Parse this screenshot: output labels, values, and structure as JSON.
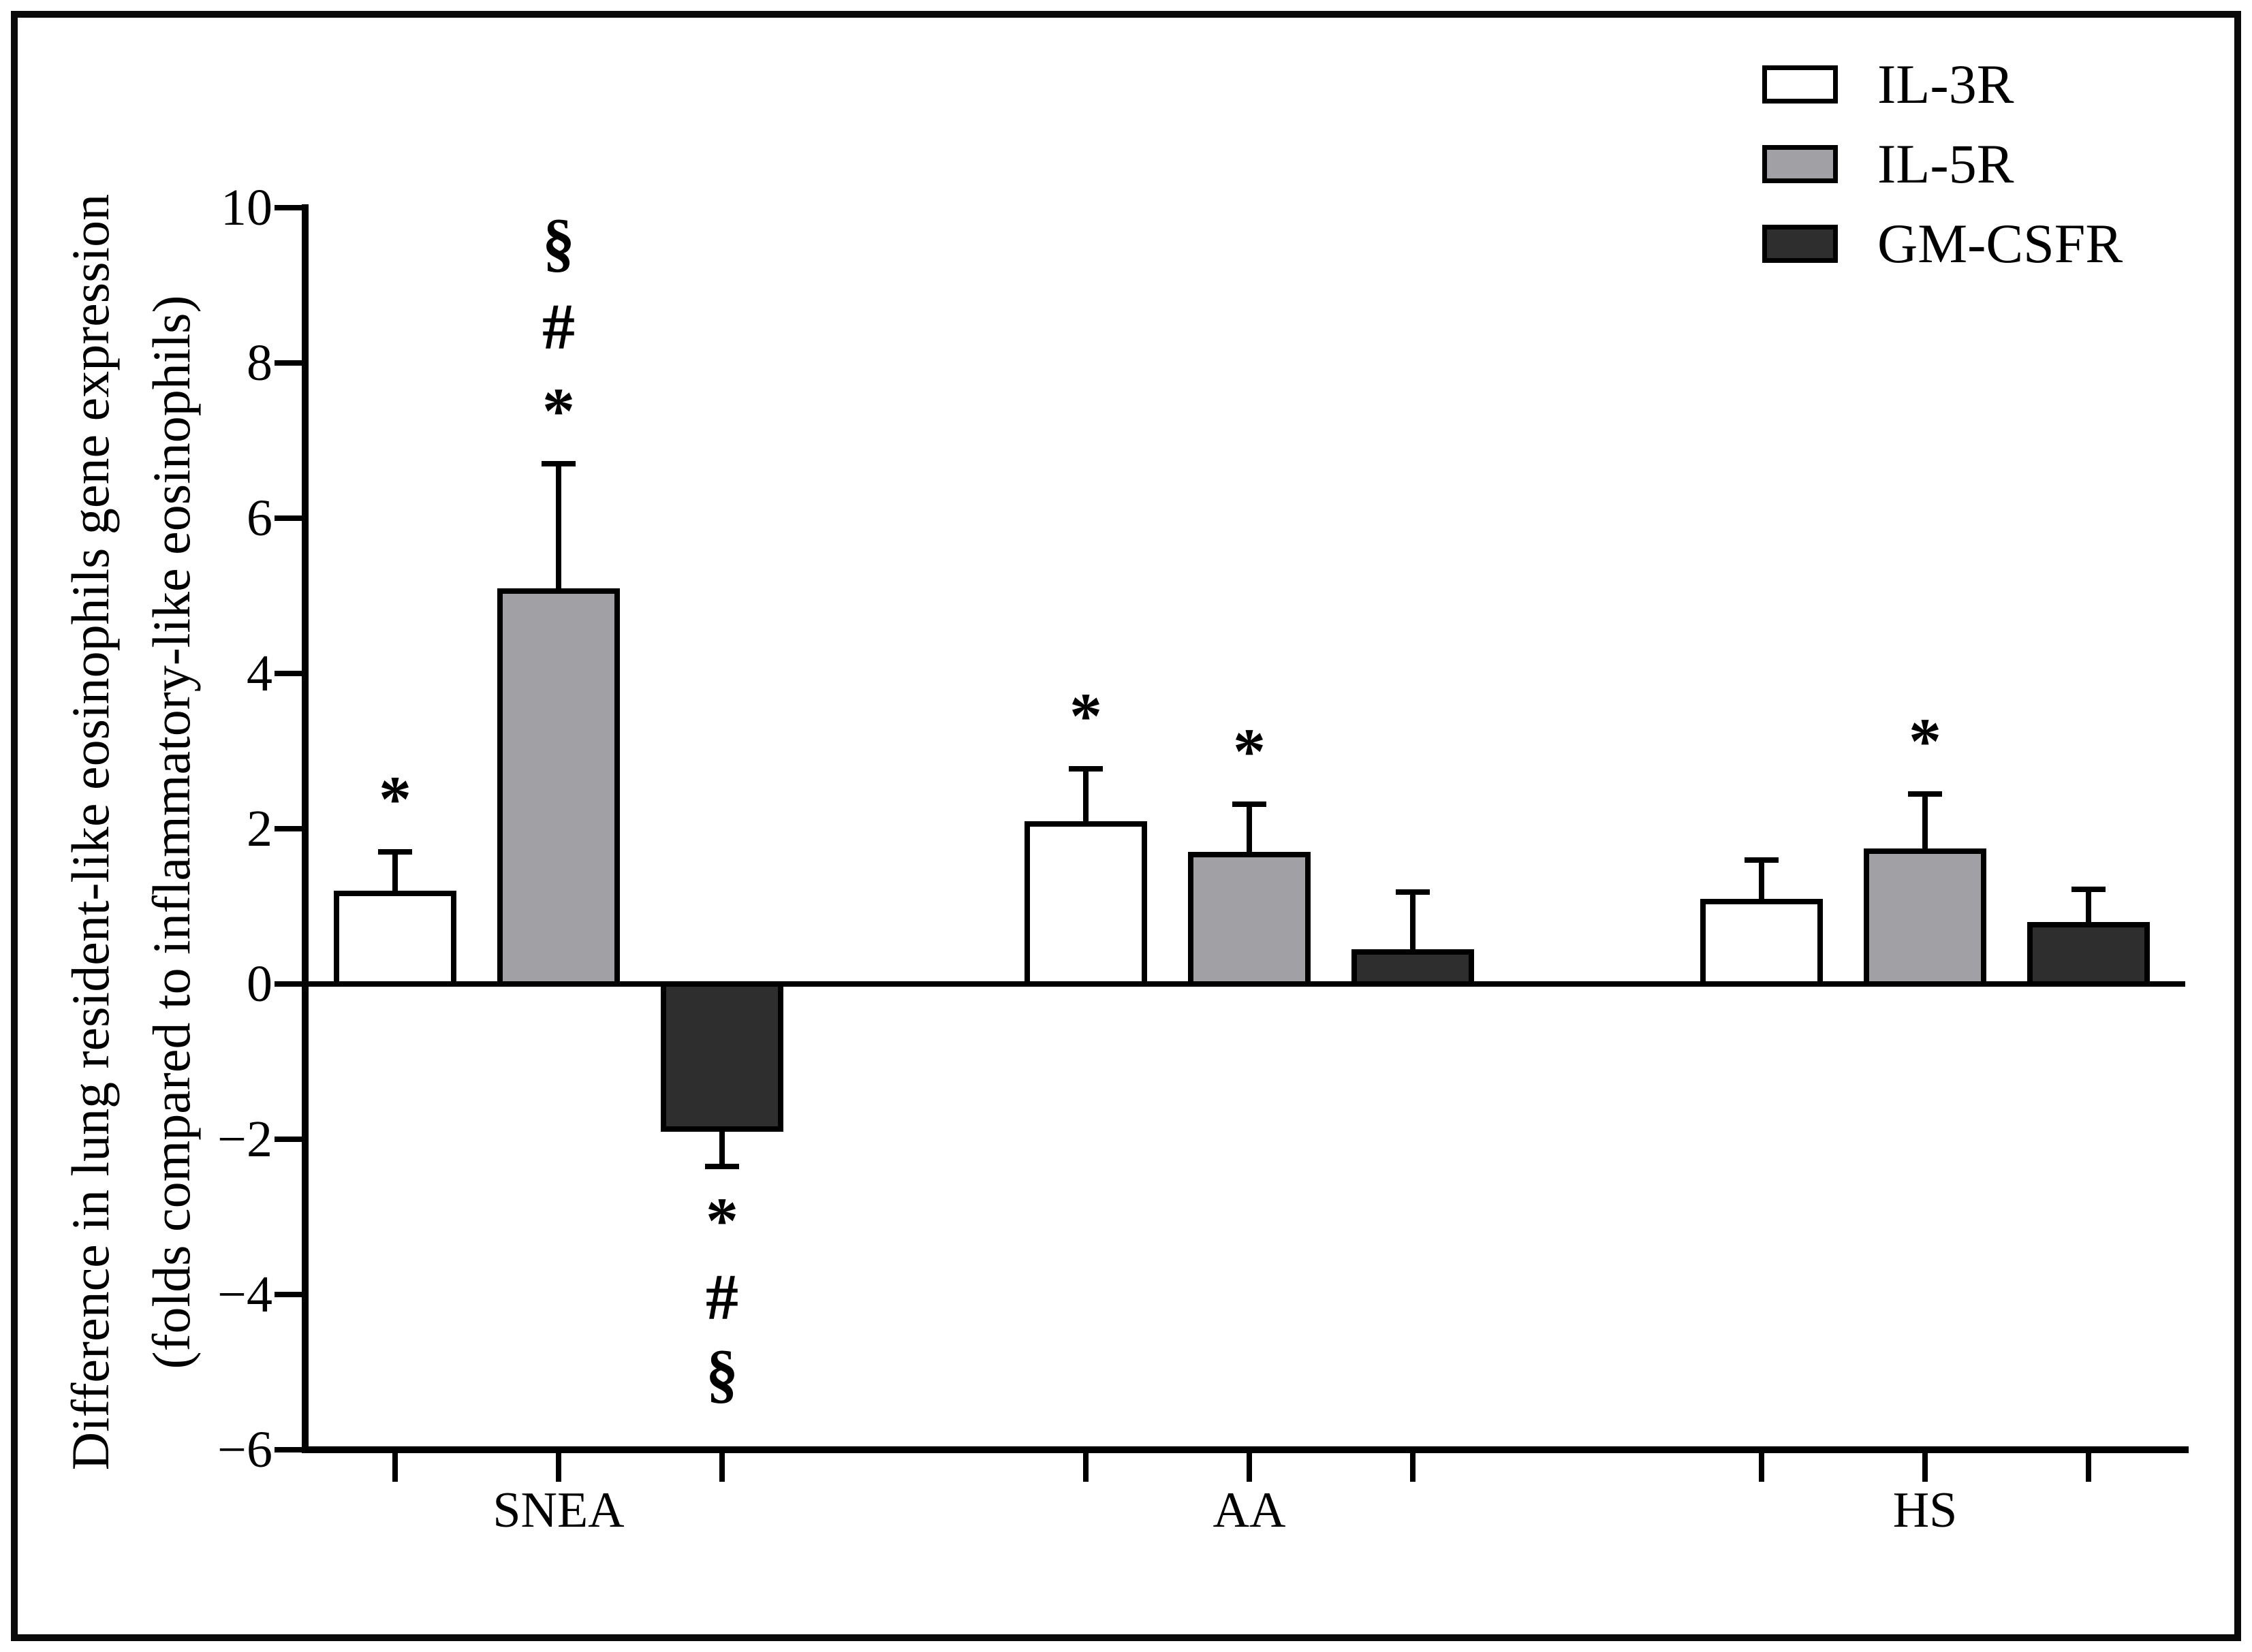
{
  "figure": {
    "ylabel_line1": "Difference in lung resident-like eosinophils gene expression",
    "ylabel_line2": "(folds compared to inflammatory-like eosinophils)"
  },
  "chart_data": {
    "type": "bar",
    "title": "",
    "xlabel": "",
    "ylabel": "Difference in lung resident-like eosinophils gene expression (folds compared to inflammatory-like eosinophils)",
    "categories": [
      "SNEA",
      "AA",
      "HS"
    ],
    "series": [
      {
        "name": "IL-3R",
        "fill": "#ffffff",
        "values": [
          1.2,
          2.1,
          1.1
        ],
        "errors_plus": [
          0.5,
          0.67,
          0.5
        ]
      },
      {
        "name": "IL-5R",
        "fill": "#a1a1a5",
        "values": [
          5.1,
          1.7,
          1.75
        ],
        "errors_plus": [
          1.6,
          0.62,
          0.7
        ]
      },
      {
        "name": "GM-CSFR",
        "fill": "#2e2e2e",
        "values": [
          -1.9,
          0.45,
          0.8
        ],
        "errors_plus": [
          0.45,
          0.73,
          0.42
        ]
      }
    ],
    "significance_annotations": [
      {
        "category": "SNEA",
        "series": "IL-3R",
        "symbols": [
          "*"
        ],
        "placement": "above"
      },
      {
        "category": "SNEA",
        "series": "IL-5R",
        "symbols": [
          "§",
          "#",
          "*"
        ],
        "placement": "above"
      },
      {
        "category": "SNEA",
        "series": "GM-CSFR",
        "symbols": [
          "*",
          "#",
          "§"
        ],
        "placement": "below"
      },
      {
        "category": "AA",
        "series": "IL-3R",
        "symbols": [
          "*"
        ],
        "placement": "above"
      },
      {
        "category": "AA",
        "series": "IL-5R",
        "symbols": [
          "*"
        ],
        "placement": "above"
      },
      {
        "category": "HS",
        "series": "IL-5R",
        "symbols": [
          "*"
        ],
        "placement": "above"
      }
    ],
    "y_ticks": [
      {
        "value": 10,
        "label": "10"
      },
      {
        "value": 8,
        "label": "8"
      },
      {
        "value": 6,
        "label": "6"
      },
      {
        "value": 4,
        "label": "4"
      },
      {
        "value": 2,
        "label": "2"
      },
      {
        "value": 0,
        "label": "0"
      },
      {
        "value": -2,
        "label": "−2"
      },
      {
        "value": -4,
        "label": "−4"
      },
      {
        "value": -6,
        "label": "−6"
      }
    ],
    "ylim": [
      -6,
      10
    ],
    "grid": false,
    "error_bars": "upper-one-sided, in direction of bar",
    "legend": {
      "position": "top-right",
      "entries": [
        "IL-3R",
        "IL-5R",
        "GM-CSFR"
      ]
    }
  }
}
